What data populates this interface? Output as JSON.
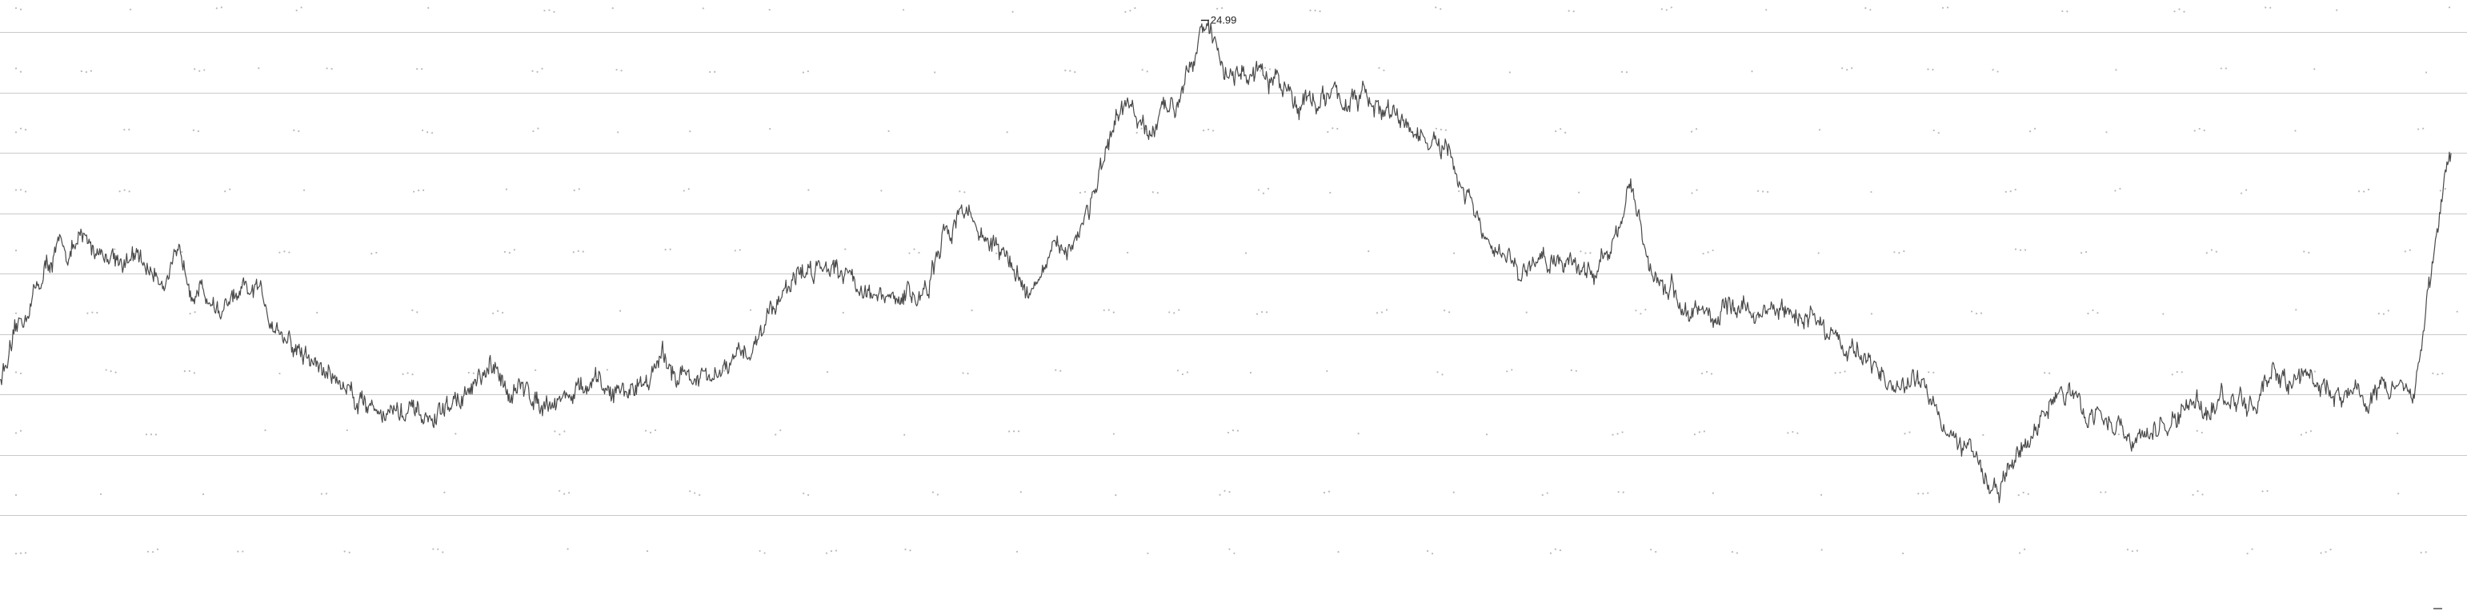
{
  "chart_data": {
    "type": "line",
    "title": "",
    "xlabel": "",
    "ylabel": "",
    "grid": true,
    "legend": "none",
    "line_color": "#4a4a4a",
    "grid_color": "#c9c9c9",
    "ylim": [
      2.0,
      25.5
    ],
    "gridlines": [
      4.5,
      7.0,
      9.5,
      12.0,
      14.5,
      17.0,
      19.5,
      22.0,
      24.5
    ],
    "peak_annotation": {
      "label": "24.99",
      "value": 24.99,
      "x": 490
    },
    "x": [
      0,
      5,
      12,
      22,
      35,
      50,
      65,
      75,
      90,
      105,
      120,
      150,
      175,
      185,
      200,
      215,
      225,
      240,
      255,
      270,
      290,
      305,
      320,
      340,
      360,
      378,
      392,
      400,
      420,
      440,
      460,
      468,
      480,
      490,
      500,
      510,
      525,
      535,
      550,
      560,
      575,
      590,
      600,
      610,
      625,
      640,
      650,
      665,
      672,
      690,
      710,
      740,
      760,
      775,
      785,
      800,
      815,
      830,
      840,
      860,
      875,
      890,
      900,
      910,
      925,
      940,
      955,
      985,
      1000
    ],
    "values": [
      10.2,
      11.2,
      13.3,
      15.3,
      15.7,
      15.2,
      14.5,
      14.8,
      13.0,
      13.7,
      11.4,
      9.2,
      8.3,
      9.1,
      10.3,
      9.5,
      9.4,
      9.7,
      9.6,
      10.8,
      9.9,
      11.2,
      14.1,
      15.2,
      13.2,
      13.8,
      17.5,
      16.3,
      13.9,
      16.3,
      21.5,
      20.0,
      21.8,
      24.99,
      23.0,
      22.7,
      22.1,
      21.7,
      21.8,
      21.5,
      20.5,
      19.4,
      17.2,
      15.0,
      14.7,
      15.3,
      14.2,
      18.0,
      15.0,
      12.8,
      13.0,
      12.7,
      11.0,
      9.7,
      9.9,
      7.5,
      5.5,
      8.0,
      9.6,
      8.5,
      7.4,
      8.8,
      9.3,
      9.1,
      9.6,
      10.4,
      9.4,
      10.0,
      19.5
    ]
  }
}
